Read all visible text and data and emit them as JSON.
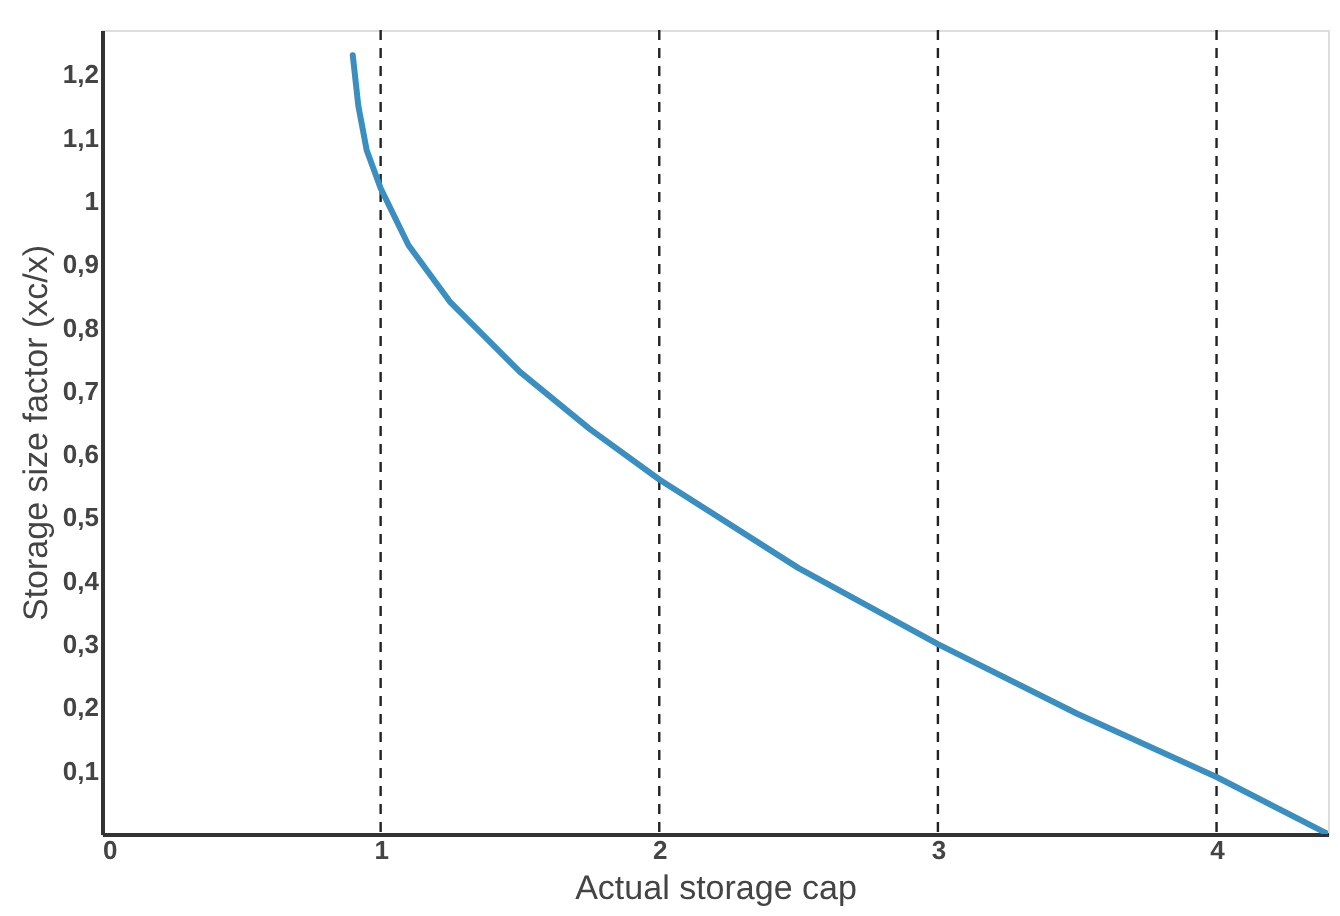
{
  "chart_data": {
    "type": "line",
    "xlabel": "Actual storage cap",
    "ylabel": "Storage size factor (xc/x)",
    "x": [
      0.9,
      0.92,
      0.95,
      1.0,
      1.1,
      1.25,
      1.5,
      1.75,
      2.0,
      2.5,
      3.0,
      3.5,
      4.0,
      4.4
    ],
    "series": [
      {
        "color": "#3a8fc0",
        "values": [
          1.23,
          1.15,
          1.08,
          1.02,
          0.93,
          0.84,
          0.73,
          0.64,
          0.56,
          0.42,
          0.3,
          0.19,
          0.09,
          0.0
        ]
      }
    ],
    "xlim": [
      0,
      4.4
    ],
    "ylim": [
      0,
      1.27
    ],
    "xticks": [
      0,
      1,
      2,
      3,
      4
    ],
    "yticks": [
      {
        "value": 0.1,
        "label": "0,1"
      },
      {
        "value": 0.2,
        "label": "0,2"
      },
      {
        "value": 0.3,
        "label": "0,3"
      },
      {
        "value": 0.4,
        "label": "0,4"
      },
      {
        "value": 0.5,
        "label": "0,5"
      },
      {
        "value": 0.6,
        "label": "0,6"
      },
      {
        "value": 0.7,
        "label": "0,7"
      },
      {
        "value": 0.8,
        "label": "0,8"
      },
      {
        "value": 0.9,
        "label": "0,9"
      },
      {
        "value": 1,
        "label": "1"
      },
      {
        "value": 1.1,
        "label": "1,1"
      },
      {
        "value": 1.2,
        "label": "1,2"
      }
    ],
    "grid": "x",
    "line_style": "solid",
    "marker": "none"
  }
}
